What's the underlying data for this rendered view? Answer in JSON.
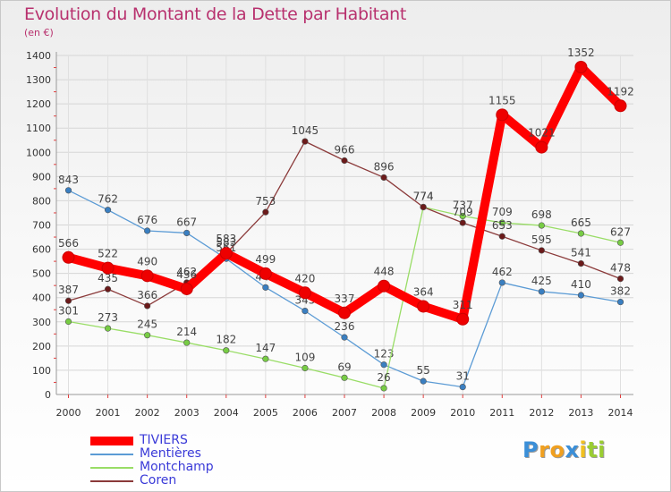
{
  "chart_data": {
    "type": "line",
    "title": "Evolution du Montant de la Dette par Habitant",
    "subtitle": "(en €)",
    "x": [
      "2000",
      "2001",
      "2002",
      "2003",
      "2004",
      "2005",
      "2006",
      "2007",
      "2008",
      "2009",
      "2010",
      "2011",
      "2012",
      "2013",
      "2014"
    ],
    "y_ticks": [
      0,
      100,
      200,
      300,
      400,
      500,
      600,
      700,
      800,
      900,
      1000,
      1100,
      1200,
      1300,
      1400
    ],
    "ylim": [
      0,
      1400
    ],
    "grid": true,
    "legend_position": "bottom-left",
    "series": [
      {
        "name": "Mentières",
        "color": "#5b9bd5",
        "marker": "#3a7fc1",
        "values": [
          843,
          762,
          676,
          667,
          561,
          442,
          345,
          236,
          123,
          55,
          31,
          462,
          425,
          410,
          382
        ]
      },
      {
        "name": "Montchamp",
        "color": "#99dd66",
        "marker": "#77cc44",
        "values": [
          301,
          273,
          245,
          214,
          182,
          147,
          109,
          69,
          26,
          774,
          737,
          709,
          698,
          665,
          627
        ]
      },
      {
        "name": "Coren",
        "color": "#8b3a3a",
        "marker": "#6b1a1a",
        "values": [
          387,
          435,
          366,
          462,
          583,
          753,
          1045,
          966,
          896,
          774,
          709,
          653,
          595,
          541,
          478
        ]
      },
      {
        "name": "TIVIERS",
        "color": "#ff0000",
        "marker": "#ee0000",
        "values": [
          566,
          522,
          490,
          436,
          583,
          499,
          420,
          337,
          448,
          364,
          311,
          1155,
          1021,
          1352,
          1192
        ]
      }
    ],
    "value_labels": {
      "Mentières": [
        "843",
        "762",
        "676",
        "667",
        "561",
        "442",
        "345",
        "236",
        "123",
        "55",
        "31",
        "462",
        "425",
        "410",
        "382"
      ],
      "Montchamp": [
        "301",
        "273",
        "245",
        "214",
        "182",
        "147",
        "109",
        "69",
        "26",
        "774",
        "737",
        "709",
        "698",
        "665",
        "627"
      ],
      "Coren": [
        "387",
        "435",
        "366",
        "462",
        "583",
        "753",
        "1045",
        "966",
        "896",
        "774",
        "709",
        "653",
        "595",
        "541",
        "478"
      ],
      "TIVIERS": [
        "566",
        "522",
        "490",
        "436",
        "583",
        "499",
        "420",
        "337",
        "448",
        "364",
        "311",
        "1155",
        "1021",
        "1352",
        "1192"
      ]
    }
  },
  "legend": [
    {
      "label": "TIVIERS",
      "color": "#ff0000",
      "weight": "heavy"
    },
    {
      "label": "Mentières",
      "color": "#5b9bd5",
      "weight": "thin"
    },
    {
      "label": "Montchamp",
      "color": "#99dd66",
      "weight": "thin"
    },
    {
      "label": "Coren",
      "color": "#8b3a3a",
      "weight": "thin"
    }
  ],
  "logo": {
    "letters": [
      "P",
      "r",
      "o",
      "x",
      "i",
      "t",
      "i"
    ],
    "colors": [
      "#3b8fd8",
      "#f0a020",
      "#f0a020",
      "#3b8fd8",
      "#f0c020",
      "#9acd32",
      "#9acd32"
    ]
  }
}
